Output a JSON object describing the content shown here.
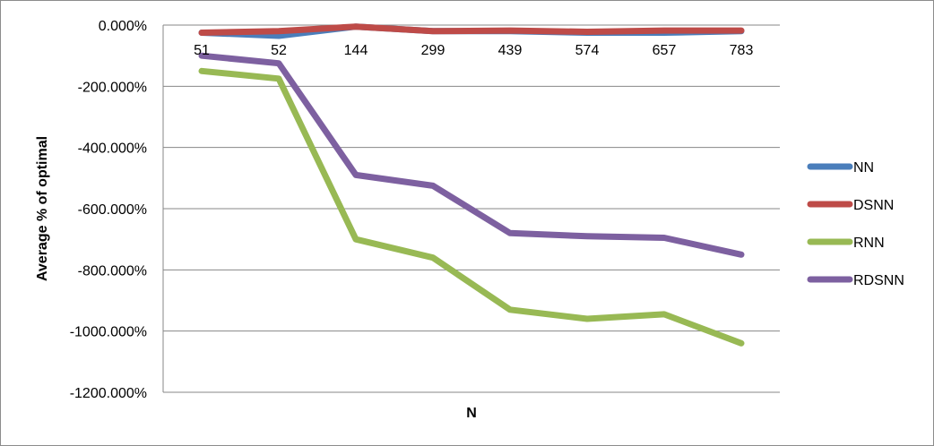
{
  "chart_data": {
    "type": "line",
    "title": "",
    "xlabel": "N",
    "ylabel": "Average % of optimal",
    "categories": [
      "51",
      "52",
      "144",
      "299",
      "439",
      "574",
      "657",
      "783"
    ],
    "y_ticks": [
      "0.000%",
      "-200.000%",
      "-400.000%",
      "-600.000%",
      "-800.000%",
      "-1000.000%",
      "-1200.000%"
    ],
    "ylim": [
      -1200,
      0
    ],
    "grid": "horizontal",
    "legend_position": "right",
    "series": [
      {
        "name": "NN",
        "color": "#4a7ebb",
        "values": [
          -25,
          -35,
          -5,
          -20,
          -20,
          -25,
          -25,
          -20
        ]
      },
      {
        "name": "DSNN",
        "color": "#be4b48",
        "values": [
          -25,
          -20,
          -5,
          -20,
          -18,
          -22,
          -18,
          -18
        ]
      },
      {
        "name": "RNN",
        "color": "#98b954",
        "values": [
          -150,
          -175,
          -700,
          -760,
          -930,
          -960,
          -945,
          -1040
        ]
      },
      {
        "name": "RDSNN",
        "color": "#7d60a0",
        "values": [
          -100,
          -125,
          -490,
          -525,
          -680,
          -690,
          -695,
          -750
        ]
      }
    ]
  }
}
